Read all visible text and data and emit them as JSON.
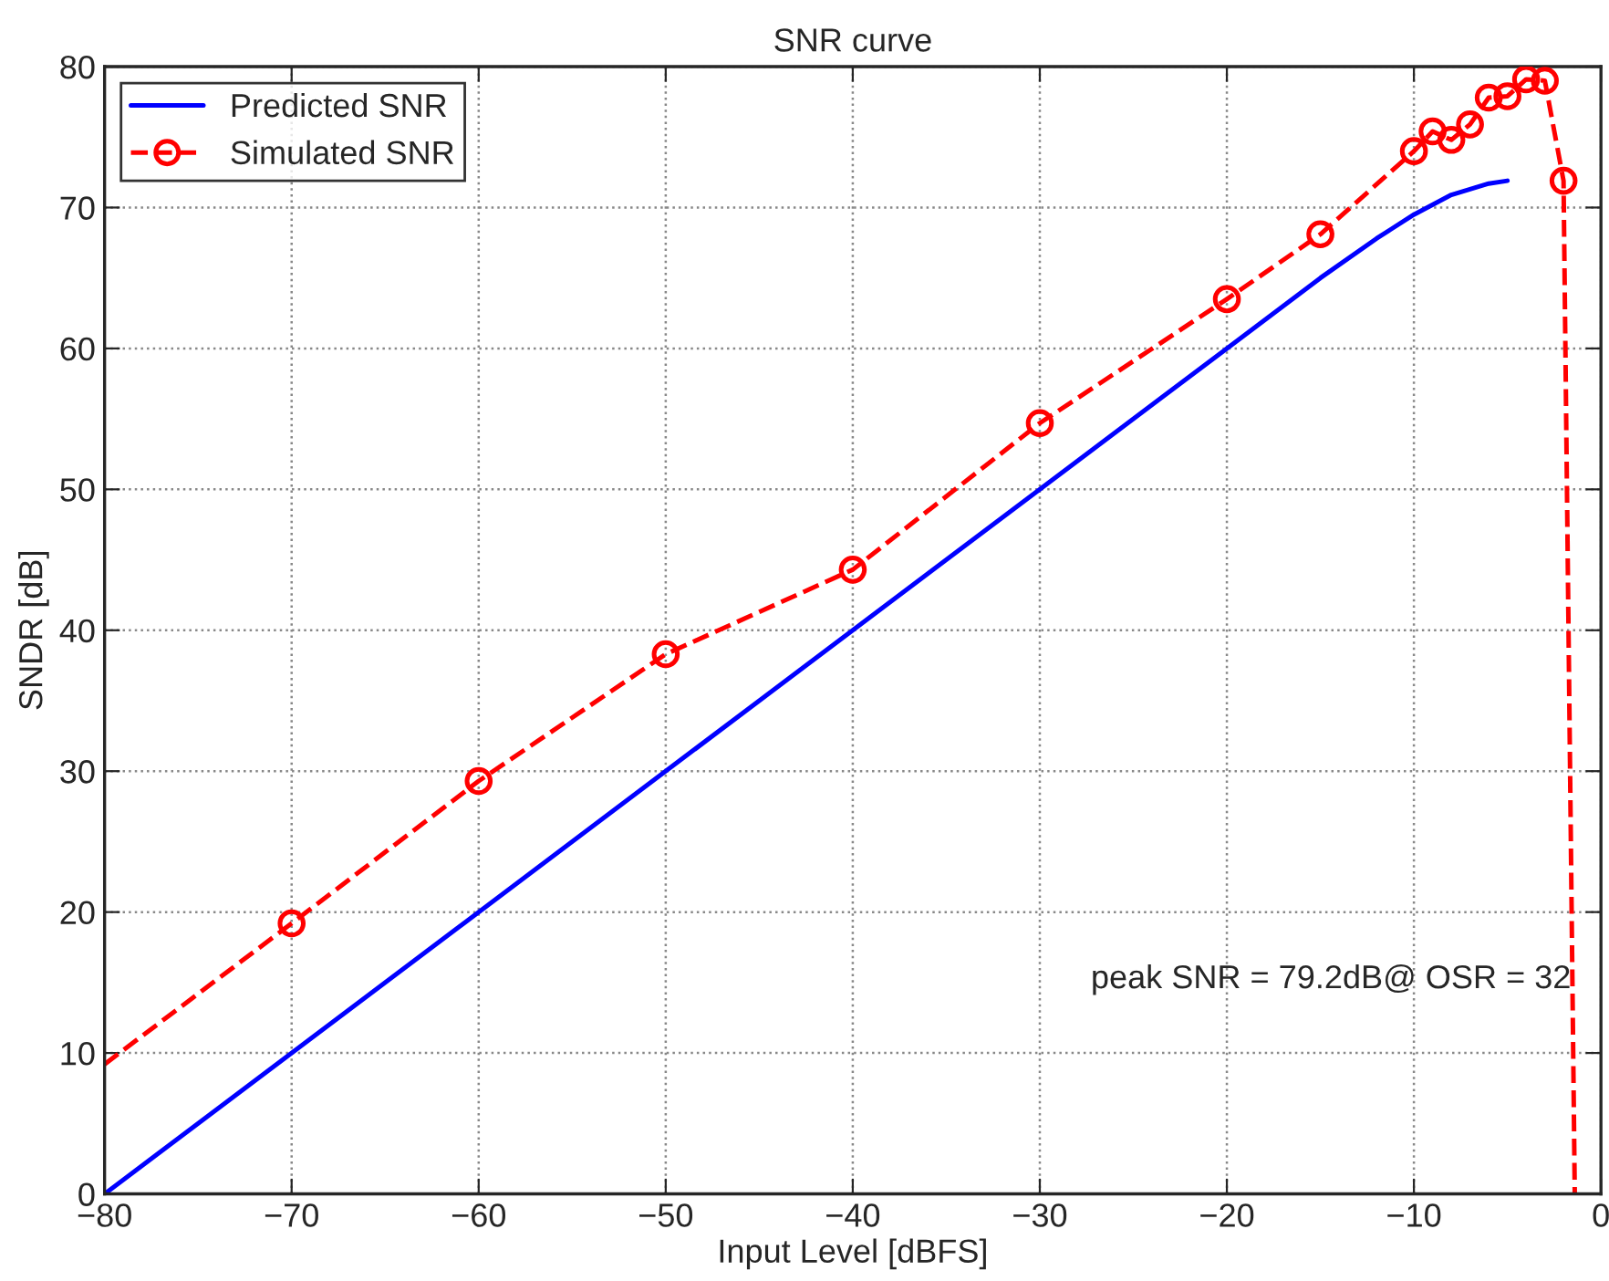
{
  "chart_data": {
    "type": "line",
    "title": "SNR curve",
    "xlabel": "Input Level [dBFS]",
    "ylabel": "SNDR [dB]",
    "series": [
      {
        "name": "Predicted SNR",
        "color": "#0000ff",
        "line_style": "solid",
        "marker": "none",
        "x": [
          -80,
          -20,
          -15,
          -12,
          -10,
          -8,
          -6,
          -5
        ],
        "values": [
          0,
          60,
          65,
          67.8,
          69.5,
          70.9,
          71.7,
          71.9
        ]
      },
      {
        "type": "line",
        "color": "#ff0000",
        "line_style": "dashed",
        "marker": "none",
        "x": [
          -80,
          -70,
          -60,
          -50,
          -40,
          -30,
          -20,
          -15,
          -10,
          -9,
          -8,
          -7,
          -6,
          -5,
          -4,
          -3,
          -2,
          -1.4
        ],
        "values": [
          9.2,
          19.2,
          29.3,
          38.3,
          44.3,
          54.7,
          63.5,
          68.1,
          74.0,
          75.4,
          74.8,
          75.9,
          77.8,
          77.9,
          79.1,
          79.0,
          71.9,
          0
        ]
      },
      {
        "name": "Simulated SNR",
        "type": "scatter",
        "color": "#ff0000",
        "line_style": "dashed",
        "marker": "circle",
        "x": [
          -70,
          -60,
          -50,
          -40,
          -30,
          -20,
          -15,
          -10,
          -9,
          -8,
          -7,
          -6,
          -5,
          -4,
          -3,
          -2
        ],
        "values": [
          19.2,
          29.3,
          38.3,
          44.3,
          54.7,
          63.5,
          68.1,
          74.0,
          75.4,
          74.8,
          75.9,
          77.8,
          77.9,
          79.1,
          79.0,
          71.9
        ]
      }
    ],
    "annotations": [
      "peak SNR = 79.2dB@ OSR = 32"
    ],
    "xlim": [
      -80,
      0
    ],
    "xticks": [
      -80,
      -70,
      -60,
      -50,
      -40,
      -30,
      -20,
      -10,
      0
    ],
    "ylim": [
      0,
      80
    ],
    "yticks": [
      0,
      10,
      20,
      30,
      40,
      50,
      60,
      70,
      80
    ],
    "grid": true,
    "legend": "top left"
  }
}
